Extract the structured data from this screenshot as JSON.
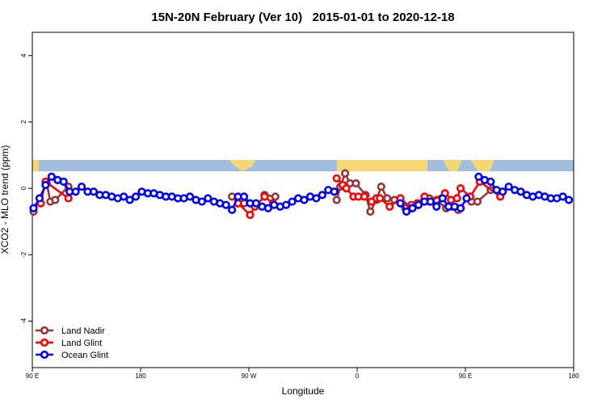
{
  "chart_data": {
    "type": "line",
    "title": "15N-20N February (Ver 10)   2015-01-01 to 2020-12-18",
    "x_label": "Longitude",
    "y_label": "XCO2 - MLO trend (ppm)",
    "xlim": [
      90,
      540
    ],
    "ylim": [
      -5.4,
      4.7
    ],
    "xticks": [
      {
        "value": 90,
        "label": "90 E"
      },
      {
        "value": 180,
        "label": "180"
      },
      {
        "value": 270,
        "label": "90 W"
      },
      {
        "value": 360,
        "label": "0"
      },
      {
        "value": 450,
        "label": "90 E"
      },
      {
        "value": 540,
        "label": "180"
      }
    ],
    "yticks": [
      -4,
      -2,
      0,
      2,
      4
    ],
    "legend": "bottomleft",
    "series": [
      {
        "name": "Land Nadir",
        "color": "#993333",
        "x": [
          91,
          102,
          105,
          109,
          120,
          200,
          256,
          261,
          266,
          274,
          283,
          292,
          320,
          343,
          346,
          350,
          354,
          359,
          367,
          371,
          376,
          380,
          385,
          391,
          400,
          405,
          410,
          420,
          426,
          434,
          439,
          444,
          448,
          455,
          460,
          471
        ],
        "values": [
          -0.7,
          0.15,
          -0.4,
          -0.35,
          0.05,
          null,
          -0.25,
          -0.45,
          -0.45,
          null,
          -0.2,
          -0.25,
          null,
          -0.35,
          0.05,
          0.45,
          0.15,
          0.15,
          -0.2,
          -0.7,
          -0.35,
          0.05,
          -0.3,
          -0.35,
          -0.6,
          -0.5,
          -0.5,
          -0.3,
          -0.35,
          -0.6,
          -0.55,
          -0.65,
          null,
          -0.4,
          -0.4,
          -0.05
        ]
      },
      {
        "name": "Land Glint",
        "color": "#ff0000",
        "x": [
          97,
          101,
          120,
          200,
          261,
          271,
          275,
          283,
          290,
          320,
          343,
          348,
          351,
          357,
          361,
          366,
          372,
          376,
          379,
          387,
          396,
          405,
          410,
          416,
          420,
          433,
          438,
          443,
          446,
          454,
          462,
          479
        ],
        "values": [
          -0.45,
          0.2,
          -0.3,
          null,
          -0.45,
          -0.8,
          -0.55,
          -0.25,
          -0.45,
          null,
          0.3,
          0.1,
          0.0,
          -0.25,
          -0.25,
          -0.25,
          -0.4,
          -0.3,
          -0.3,
          -0.55,
          -0.3,
          -0.6,
          -0.45,
          -0.25,
          -0.4,
          -0.15,
          -0.35,
          -0.3,
          0.0,
          -0.25,
          0.2,
          -0.25
        ]
      },
      {
        "name": "Ocean Glint",
        "color": "#0000ff",
        "x": [
          91,
          96,
          101,
          106,
          111,
          116,
          121,
          126,
          131,
          136,
          141,
          146,
          151,
          156,
          161,
          166,
          171,
          176,
          181,
          186,
          191,
          196,
          201,
          206,
          211,
          216,
          221,
          226,
          231,
          236,
          241,
          246,
          251,
          256,
          261,
          266,
          271,
          276,
          281,
          286,
          291,
          296,
          301,
          306,
          311,
          316,
          321,
          326,
          331,
          336,
          341,
          370,
          396,
          401,
          406,
          411,
          416,
          421,
          426,
          431,
          436,
          441,
          446,
          451,
          456,
          461,
          466,
          471,
          476,
          481,
          486,
          491,
          496,
          501,
          506,
          511,
          516,
          521,
          526,
          531,
          536
        ],
        "values": [
          -0.6,
          -0.3,
          0.1,
          0.35,
          0.25,
          0.2,
          -0.1,
          -0.1,
          0.05,
          -0.1,
          -0.1,
          -0.2,
          -0.2,
          -0.25,
          -0.3,
          -0.25,
          -0.35,
          -0.25,
          -0.1,
          -0.15,
          -0.15,
          -0.2,
          -0.25,
          -0.25,
          -0.3,
          -0.3,
          -0.25,
          -0.35,
          -0.4,
          -0.3,
          -0.4,
          -0.45,
          -0.5,
          -0.65,
          -0.25,
          -0.25,
          -0.45,
          -0.45,
          -0.55,
          -0.6,
          -0.5,
          -0.55,
          -0.5,
          -0.4,
          -0.3,
          -0.35,
          -0.25,
          -0.3,
          -0.2,
          -0.05,
          -0.1,
          null,
          -0.45,
          -0.7,
          -0.6,
          -0.5,
          -0.4,
          -0.4,
          -0.55,
          -0.3,
          -0.55,
          -0.55,
          -0.6,
          -0.3,
          null,
          0.35,
          0.25,
          0.2,
          -0.05,
          -0.1,
          0.05,
          -0.05,
          -0.1,
          -0.2,
          -0.25,
          -0.2,
          -0.25,
          -0.3,
          -0.3,
          -0.25,
          -0.35
        ]
      }
    ]
  }
}
